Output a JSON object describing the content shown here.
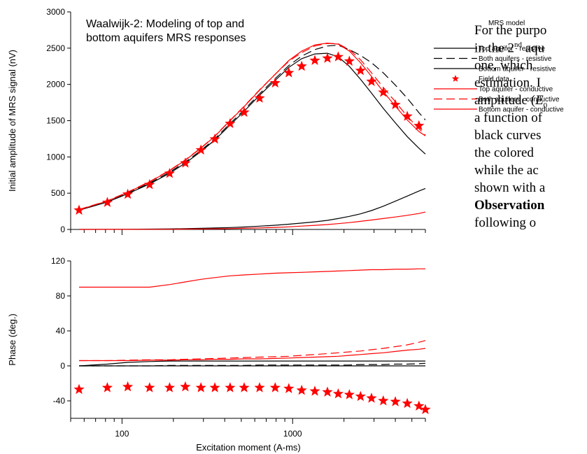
{
  "chart_data": [
    {
      "type": "line",
      "title": "Waalwijk-2: Modeling of top and bottom aquifers MRS responses",
      "title_lines": [
        "Waalwijk-2: Modeling of top and",
        "bottom aquifers MRS responses"
      ],
      "ylabel": "Initial amplitude of MRS signal (nV)",
      "xscale": "log",
      "xlim": [
        50,
        6000
      ],
      "ylim": [
        0,
        3000
      ],
      "yticks": [
        0,
        500,
        1000,
        1500,
        2000,
        2500,
        3000
      ],
      "x": [
        56,
        82,
        108,
        145,
        190,
        235,
        290,
        350,
        430,
        520,
        640,
        790,
        950,
        1130,
        1350,
        1600,
        1850,
        2150,
        2500,
        2900,
        3400,
        4000,
        4700,
        5500,
        6000
      ],
      "series": [
        {
          "name": "Top aquifer - resistive",
          "color": "#000000",
          "dash": "solid",
          "values": [
            1,
            2,
            3,
            5,
            8,
            11,
            15,
            20,
            26,
            34,
            45,
            58,
            72,
            88,
            105,
            125,
            150,
            180,
            215,
            260,
            320,
            390,
            460,
            530,
            565
          ]
        },
        {
          "name": "Both aquifers - resistive",
          "color": "#000000",
          "dash": "dash",
          "values": [
            268,
            385,
            500,
            640,
            790,
            930,
            1090,
            1250,
            1460,
            1650,
            1870,
            2080,
            2260,
            2390,
            2480,
            2530,
            2540,
            2480,
            2400,
            2300,
            2160,
            1990,
            1810,
            1610,
            1510
          ]
        },
        {
          "name": "Bottom aquifer - resistive",
          "color": "#000000",
          "dash": "solid",
          "values": [
            265,
            378,
            492,
            628,
            775,
            915,
            1075,
            1235,
            1440,
            1630,
            1850,
            2055,
            2235,
            2355,
            2420,
            2430,
            2380,
            2250,
            2070,
            1880,
            1670,
            1470,
            1280,
            1120,
            1040
          ]
        },
        {
          "name": "Field data",
          "color": "#ff0000",
          "marker": "star",
          "values": [
            265,
            372,
            485,
            618,
            772,
            915,
            1095,
            1245,
            1460,
            1615,
            1810,
            2020,
            2160,
            2250,
            2330,
            2360,
            2380,
            2320,
            2190,
            2040,
            1890,
            1720,
            1560,
            1430,
            null
          ]
        },
        {
          "name": "Top aquifer - conductive",
          "color": "#ff0000",
          "dash": "solid",
          "values": [
            0,
            1,
            1,
            2,
            3,
            5,
            7,
            9,
            12,
            16,
            21,
            28,
            36,
            46,
            57,
            68,
            80,
            95,
            112,
            130,
            150,
            172,
            195,
            220,
            240
          ]
        },
        {
          "name": "Both aquifers - conductive",
          "color": "#ff0000",
          "dash": "dash",
          "values": [
            275,
            395,
            515,
            660,
            815,
            960,
            1125,
            1290,
            1505,
            1700,
            1925,
            2140,
            2320,
            2440,
            2530,
            2565,
            2560,
            2480,
            2340,
            2160,
            1960,
            1760,
            1560,
            1390,
            1300
          ]
        },
        {
          "name": "Bottom aquifer - conductive",
          "color": "#ff0000",
          "dash": "solid",
          "values": [
            272,
            392,
            510,
            655,
            810,
            955,
            1120,
            1285,
            1500,
            1695,
            1920,
            2140,
            2330,
            2460,
            2545,
            2570,
            2555,
            2460,
            2300,
            2110,
            1900,
            1700,
            1510,
            1350,
            1290
          ]
        }
      ]
    },
    {
      "type": "line",
      "ylabel": "Phase (deg.)",
      "xlabel": "Excitation moment (A-ms)",
      "xscale": "log",
      "xlim": [
        50,
        6000
      ],
      "ylim": [
        -60,
        120
      ],
      "yticks": [
        -40,
        0,
        40,
        80,
        120
      ],
      "xtick_labels": [
        {
          "value": 100,
          "label": "100"
        },
        {
          "value": 1000,
          "label": "1000"
        }
      ],
      "x": [
        56,
        82,
        108,
        145,
        190,
        235,
        290,
        350,
        430,
        520,
        640,
        790,
        950,
        1130,
        1350,
        1600,
        1850,
        2150,
        2500,
        2900,
        3400,
        4000,
        4700,
        5500,
        6000
      ],
      "series": [
        {
          "name": "Top aquifer - conductive",
          "color": "#ff0000",
          "dash": "solid",
          "values": [
            90,
            90,
            90,
            90,
            93,
            96,
            99,
            101,
            103,
            104,
            105,
            106,
            106.5,
            107,
            107.5,
            108,
            108.5,
            109,
            109.5,
            110,
            110,
            110.5,
            110.5,
            111,
            111
          ]
        },
        {
          "name": "Both aquifers - conductive",
          "color": "#ff0000",
          "dash": "dash",
          "values": [
            6,
            6,
            6.5,
            7,
            7,
            7.5,
            8,
            8.5,
            9,
            9.5,
            10,
            10.5,
            11,
            12,
            13,
            14,
            15,
            16,
            17,
            18.5,
            20,
            22,
            24,
            27,
            29
          ]
        },
        {
          "name": "Bottom aquifer - conductive",
          "color": "#ff0000",
          "dash": "solid",
          "values": [
            6,
            6,
            6,
            6.5,
            6.5,
            7,
            7,
            7.5,
            7.5,
            8,
            8,
            8.5,
            9,
            9.5,
            10,
            10.5,
            11,
            12,
            13,
            14,
            15,
            16.5,
            18,
            19,
            20
          ]
        },
        {
          "name": "Top aquifer - resistive",
          "color": "#000000",
          "dash": "solid",
          "values": [
            0,
            2,
            4,
            5,
            5.5,
            5.5,
            5.5,
            5.5,
            5.5,
            5.5,
            5.5,
            5.5,
            5.5,
            5.5,
            5.5,
            5.5,
            5.5,
            5.5,
            5.5,
            5.5,
            5.5,
            5.5,
            5.5,
            5.5,
            5.5
          ]
        },
        {
          "name": "Both aquifers - resistive",
          "color": "#000000",
          "dash": "dash",
          "values": [
            0,
            0,
            0,
            0,
            0.5,
            0.5,
            0.5,
            0.5,
            0.5,
            0.5,
            1,
            1,
            1,
            1,
            1,
            1,
            1,
            1,
            1.5,
            1.5,
            1.5,
            2,
            2,
            2.5,
            3
          ]
        },
        {
          "name": "Bottom aquifer - resistive",
          "color": "#000000",
          "dash": "solid",
          "values": [
            0,
            0,
            0,
            0,
            0,
            0,
            0,
            0,
            0,
            0,
            0,
            0,
            0,
            0,
            0,
            0,
            0,
            0,
            0,
            0,
            0,
            0,
            0,
            0,
            0
          ]
        },
        {
          "name": "Field data",
          "color": "#ff0000",
          "marker": "star",
          "values": [
            -27,
            -25,
            -24,
            -25,
            -25,
            -24,
            -25,
            -25,
            -25,
            -25,
            -25,
            -25,
            -26,
            -28,
            -29,
            -30,
            -32,
            -33,
            -35,
            -37,
            -40,
            -41,
            -43,
            -46,
            -50
          ]
        }
      ]
    }
  ],
  "legend": {
    "title": "MRS model",
    "entries": [
      {
        "label": "Top aquifer - resistive",
        "color": "#000000",
        "dash": "solid"
      },
      {
        "label": "Both aquifers - resistive",
        "color": "#000000",
        "dash": "dash"
      },
      {
        "label": "Bottom aquifer - resistive",
        "color": "#000000",
        "dash": "solid"
      },
      {
        "label": "Field data",
        "color": "#ff0000",
        "marker": "star"
      },
      {
        "label": "Top aquifer - conductive",
        "color": "#ff0000",
        "dash": "solid"
      },
      {
        "label": "Both aquifers - conductive",
        "color": "#ff0000",
        "dash": "dash"
      },
      {
        "label": "Bottom aquifer - conductive",
        "color": "#ff0000",
        "dash": "solid"
      }
    ]
  },
  "paragraph": {
    "l1": "For the purpo",
    "l2a": "in the 2",
    "l2sup": "nd",
    "l2b": " aqu",
    "l3": "one,  which",
    "l4": "estimation. I",
    "l5a": "amplitude (",
    "l5e": "E",
    "l5sub": "0",
    "l6": "a function of",
    "l7": "black curves",
    "l8": "the  colored",
    "l9": "while  the  ac",
    "l10": "shown with a",
    "l11": "Observation",
    "l12": "following  o"
  }
}
